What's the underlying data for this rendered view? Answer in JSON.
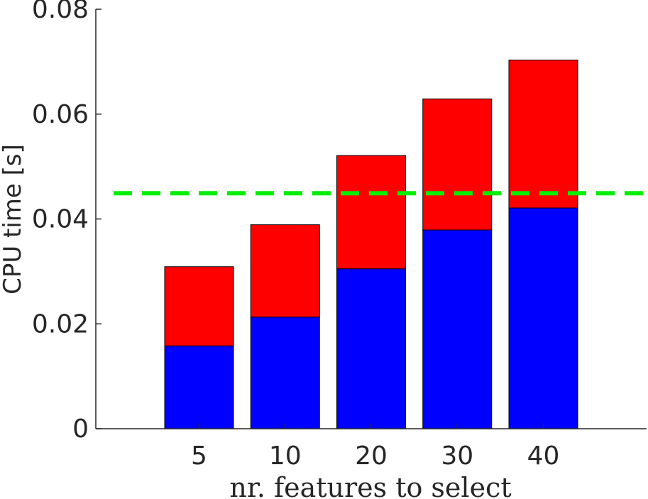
{
  "chart_data": {
    "type": "bar",
    "stacked": true,
    "categories": [
      "5",
      "10",
      "20",
      "30",
      "40"
    ],
    "series": [
      {
        "values": [
          0.0158,
          0.0213,
          0.0305,
          0.0379,
          0.0421
        ],
        "color": "#0000ff"
      },
      {
        "values": [
          0.0151,
          0.0176,
          0.0216,
          0.025,
          0.0282
        ],
        "color": "#ff0000"
      }
    ],
    "reference_line": {
      "y": 0.0449,
      "color": "#00ee00",
      "style": "dashed"
    },
    "xlabel": "nr. features to select",
    "ylabel": "CPU time [s]",
    "ylim": [
      0,
      0.08
    ],
    "yticks": [
      "0",
      "0.02",
      "0.04",
      "0.06",
      "0.08"
    ],
    "grid": false,
    "legend": "none"
  }
}
